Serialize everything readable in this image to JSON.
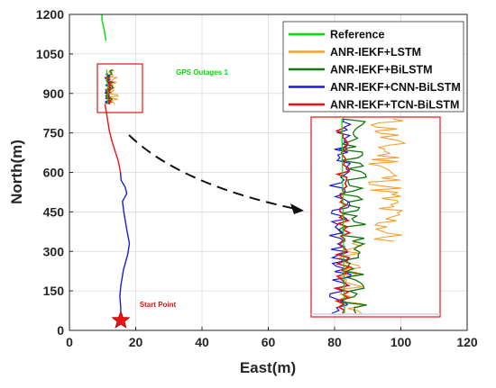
{
  "chart_data": {
    "type": "line",
    "xlabel": "East(m)",
    "ylabel": "North(m)",
    "xlim": [
      0,
      120
    ],
    "ylim": [
      0,
      1200
    ],
    "x_ticks": [
      0,
      20,
      40,
      60,
      80,
      100,
      120
    ],
    "y_ticks": [
      0,
      150,
      300,
      450,
      600,
      750,
      900,
      1050,
      1200
    ],
    "grid": true,
    "legend_position": "top-right",
    "series": [
      {
        "name": "Reference",
        "color": "#00dd00"
      },
      {
        "name": "ANR-IEKF+LSTM",
        "color": "#f5a030"
      },
      {
        "name": "ANR-IEKF+BiLSTM",
        "color": "#117711"
      },
      {
        "name": "ANR-IEKF+CNN-BiLSTM",
        "color": "#1a1adf"
      },
      {
        "name": "ANR-IEKF+TCN-BiLSTM",
        "color": "#ee1111"
      }
    ],
    "trajectory": {
      "blue_segment": [
        [
          15.3,
          40
        ],
        [
          15.5,
          80
        ],
        [
          15.2,
          130
        ],
        [
          15.5,
          170
        ],
        [
          16.3,
          230
        ],
        [
          17.6,
          290
        ],
        [
          18.1,
          330
        ],
        [
          17.2,
          390
        ],
        [
          16.4,
          450
        ],
        [
          16.0,
          490
        ],
        [
          17.3,
          520
        ],
        [
          16.8,
          545
        ],
        [
          15.6,
          570
        ],
        [
          15.4,
          600
        ]
      ],
      "red_segment": [
        [
          15.4,
          600
        ],
        [
          14.8,
          640
        ],
        [
          13.8,
          680
        ],
        [
          12.8,
          720
        ],
        [
          12.0,
          760
        ],
        [
          11.5,
          800
        ],
        [
          11.0,
          840
        ],
        [
          10.7,
          860
        ]
      ],
      "green_segment": [
        [
          11.0,
          1100
        ],
        [
          10.5,
          1140
        ],
        [
          9.8,
          1180
        ],
        [
          9.8,
          1200
        ]
      ]
    },
    "annotations": [
      {
        "text": "GPS Outages 1",
        "color": "#00dd00",
        "x": 52,
        "y": 975
      },
      {
        "text": "Start Point",
        "color": "#ee1111",
        "x": 33,
        "y": 90
      }
    ],
    "start_point": {
      "x": 15.5,
      "y": 38
    }
  }
}
